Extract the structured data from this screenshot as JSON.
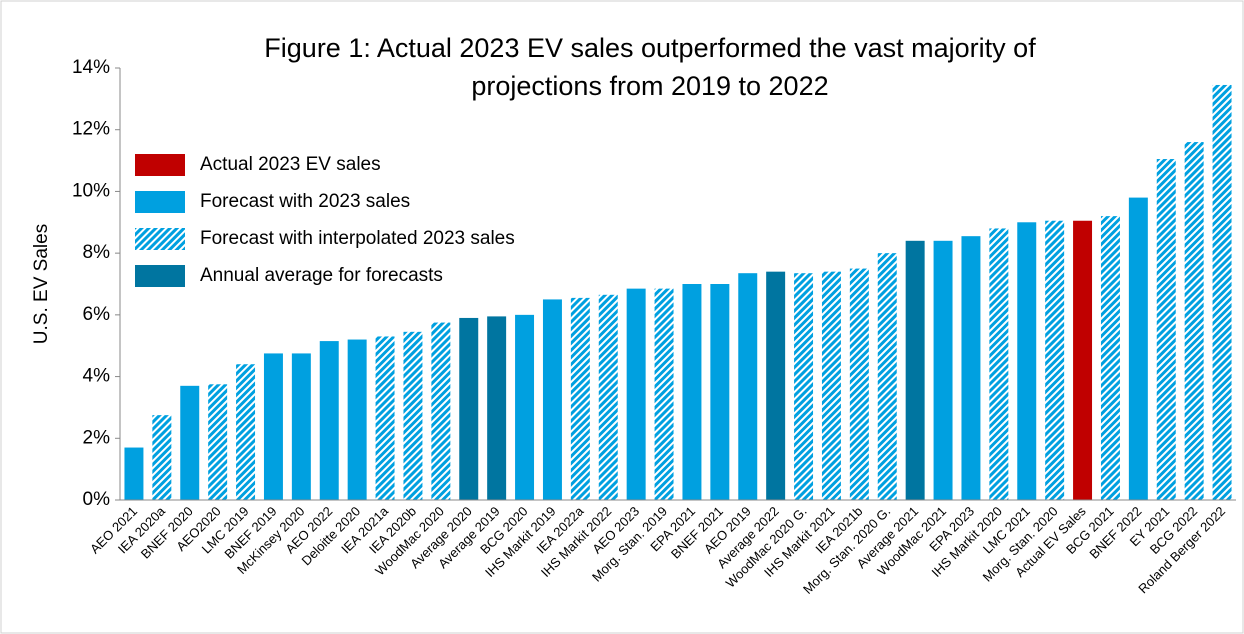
{
  "chart_data": {
    "type": "bar",
    "title": [
      "Figure 1: Actual 2023 EV sales outperformed the vast majority of",
      "projections from 2019 to 2022"
    ],
    "y_label": "U.S. EV Sales",
    "series": [
      {
        "name": "Actual 2023 EV sales",
        "color": "#c00000",
        "pattern": "solid"
      },
      {
        "name": "Forecast with 2023 sales",
        "color": "#00a0e0",
        "pattern": "solid"
      },
      {
        "name": "Forecast with interpolated 2023 sales",
        "color": "#00a0e0",
        "pattern": "hatch"
      },
      {
        "name": "Annual average for forecasts",
        "color": "#0075a0",
        "pattern": "solid"
      }
    ],
    "categories": [
      "AEO 2021",
      "IEA 2020a",
      "BNEF 2020",
      "AEO2020",
      "LMC 2019",
      "BNEF 2019",
      "McKinsey 2020",
      "AEO 2022",
      "Deloitte 2020",
      "IEA 2021a",
      "IEA 2020b",
      "WoodMac 2020",
      "Average 2020",
      "Average 2019",
      "BCG 2020",
      "IHS Markit 2019",
      "IEA 2022a",
      "IHS Markit 2022",
      "AEO 2023",
      "Morg. Stan. 2019",
      "EPA 2021",
      "BNEF 2021",
      "AEO 2019",
      "Average 2022",
      "WoodMac 2020 G.",
      "IHS Markit 2021",
      "IEA 2021b",
      "Morg. Stan. 2020 G.",
      "Average 2021",
      "WoodMac 2021",
      "EPA 2023",
      "IHS Markit 2020",
      "LMC 2021",
      "Morg. Stan. 2020",
      "Actual EV Sales",
      "BCG 2021",
      "BNEF 2022",
      "EY 2021",
      "BCG 2022",
      "Roland Berger 2022"
    ],
    "values": [
      1.7,
      2.75,
      3.7,
      3.75,
      4.4,
      4.75,
      4.75,
      5.15,
      5.2,
      5.3,
      5.45,
      5.75,
      5.9,
      5.95,
      6.0,
      6.5,
      6.55,
      6.65,
      6.85,
      6.85,
      7.0,
      7.0,
      7.35,
      7.4,
      7.35,
      7.4,
      7.5,
      8.0,
      8.4,
      8.4,
      8.55,
      8.8,
      9.0,
      9.05,
      9.05,
      9.2,
      9.8,
      11.05,
      11.6,
      13.45
    ],
    "bar_series": [
      1,
      2,
      1,
      2,
      2,
      1,
      1,
      1,
      1,
      2,
      2,
      2,
      3,
      3,
      1,
      1,
      2,
      2,
      1,
      2,
      1,
      1,
      1,
      3,
      2,
      2,
      2,
      2,
      3,
      1,
      1,
      2,
      1,
      2,
      0,
      2,
      1,
      2,
      2,
      2
    ],
    "ylim": [
      0,
      14
    ],
    "yticks": [
      {
        "value": 0,
        "label": "0%"
      },
      {
        "value": 2,
        "label": "2%"
      },
      {
        "value": 4,
        "label": "4%"
      },
      {
        "value": 6,
        "label": "6%"
      },
      {
        "value": 8,
        "label": "8%"
      },
      {
        "value": 10,
        "label": "10%"
      },
      {
        "value": 12,
        "label": "12%"
      },
      {
        "value": 14,
        "label": "14%"
      }
    ],
    "legend": "upper left"
  }
}
